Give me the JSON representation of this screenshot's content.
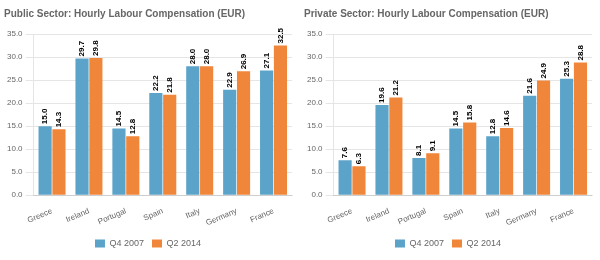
{
  "chart_data": [
    {
      "type": "bar",
      "title": "Public Sector: Hourly Labour Compensation (EUR)",
      "categories": [
        "Greece",
        "Ireland",
        "Portugal",
        "Spain",
        "Italy",
        "Germany",
        "France"
      ],
      "series": [
        {
          "name": "Q4 2007",
          "color": "#5ba3c9",
          "values": [
            15.0,
            29.7,
            14.5,
            22.2,
            28.0,
            22.9,
            27.1
          ],
          "value_labels": [
            "15.0",
            "29.7",
            "14.5",
            "22.2",
            "28.0",
            "22.9",
            "27.1"
          ]
        },
        {
          "name": "Q2 2014",
          "color": "#f0863a",
          "values": [
            14.3,
            29.8,
            12.8,
            21.8,
            28.0,
            26.9,
            32.5
          ],
          "value_labels": [
            "14.3",
            "29.8",
            "12.8",
            "21.8",
            "28.0",
            "26.9",
            "32.5"
          ]
        }
      ],
      "ylim": [
        0,
        35.0
      ],
      "yticks": [
        {
          "value": 0.0,
          "label": "0.0"
        },
        {
          "value": 5.0,
          "label": "5.0"
        },
        {
          "value": 10.0,
          "label": "10.0"
        },
        {
          "value": 15.0,
          "label": "15.0"
        },
        {
          "value": 20.0,
          "label": "20.0"
        },
        {
          "value": 25.0,
          "label": "25.0"
        },
        {
          "value": 30.0,
          "label": "30.0"
        },
        {
          "value": 35.0,
          "label": "35.0"
        }
      ],
      "grid": true,
      "legend": "bottom",
      "data_labels": true
    },
    {
      "type": "bar",
      "title": "Private Sector: Hourly Labour Compensation (EUR)",
      "categories": [
        "Greece",
        "Ireland",
        "Portugal",
        "Spain",
        "Italy",
        "Germany",
        "France"
      ],
      "series": [
        {
          "name": "Q4 2007",
          "color": "#5ba3c9",
          "values": [
            7.6,
            19.6,
            8.1,
            14.5,
            12.8,
            21.6,
            25.3
          ],
          "value_labels": [
            "7.6",
            "19.6",
            "8.1",
            "14.5",
            "12.8",
            "21.6",
            "25.3"
          ]
        },
        {
          "name": "Q2 2014",
          "color": "#f0863a",
          "values": [
            6.3,
            21.2,
            9.1,
            15.8,
            14.6,
            24.9,
            28.8
          ],
          "value_labels": [
            "6.3",
            "21.2",
            "9.1",
            "15.8",
            "14.6",
            "24.9",
            "28.8"
          ]
        }
      ],
      "ylim": [
        0,
        35.0
      ],
      "yticks": [
        {
          "value": 0.0,
          "label": "0.0"
        },
        {
          "value": 5.0,
          "label": "5.0"
        },
        {
          "value": 10.0,
          "label": "10.0"
        },
        {
          "value": 15.0,
          "label": "15.0"
        },
        {
          "value": 20.0,
          "label": "20.0"
        },
        {
          "value": 25.0,
          "label": "25.0"
        },
        {
          "value": 30.0,
          "label": "30.0"
        },
        {
          "value": 35.0,
          "label": "35.0"
        }
      ],
      "grid": true,
      "legend": "bottom",
      "data_labels": true
    }
  ]
}
